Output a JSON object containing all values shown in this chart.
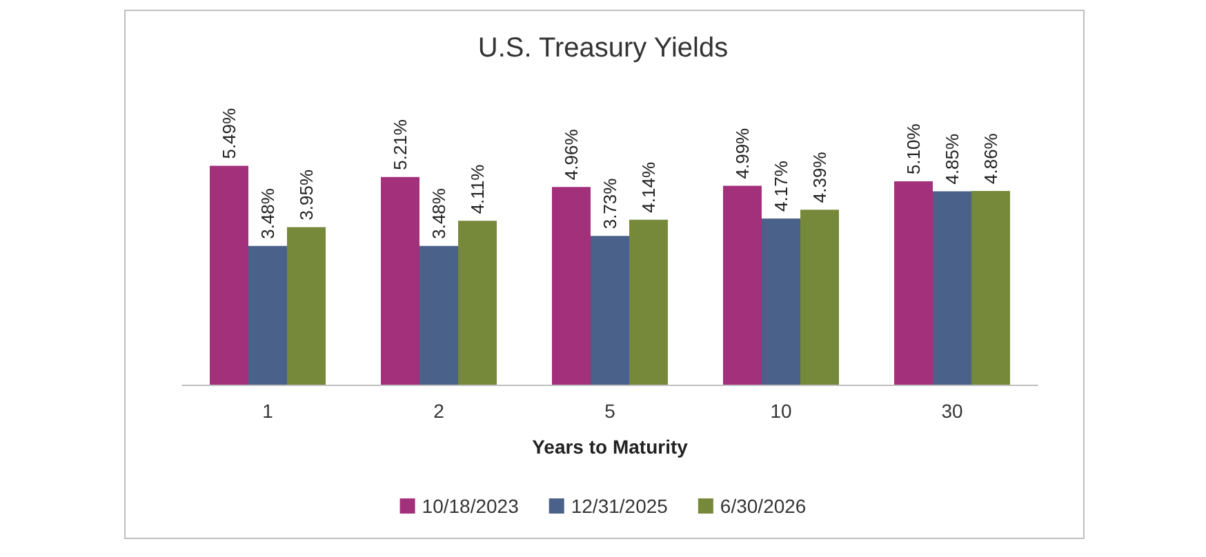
{
  "chart_data": {
    "type": "bar",
    "title": "U.S. Treasury Yields",
    "xlabel": "Years to Maturity",
    "categories": [
      "1",
      "2",
      "5",
      "10",
      "30"
    ],
    "series": [
      {
        "name": "10/18/2023",
        "color": "#a3307a",
        "values": [
          5.49,
          5.21,
          4.96,
          4.99,
          5.1
        ],
        "value_labels": [
          "5.49%",
          "5.21%",
          "4.96%",
          "4.99%",
          "5.10%"
        ]
      },
      {
        "name": "12/31/2025",
        "color": "#4a6189",
        "values": [
          3.48,
          3.48,
          3.73,
          4.17,
          4.85
        ],
        "value_labels": [
          "3.48%",
          "3.48%",
          "3.73%",
          "4.17%",
          "4.85%"
        ]
      },
      {
        "name": "6/30/2026",
        "color": "#76893a",
        "values": [
          3.95,
          4.11,
          4.14,
          4.39,
          4.86
        ],
        "value_labels": [
          "3.95%",
          "4.11%",
          "4.14%",
          "4.39%",
          "4.86%"
        ]
      }
    ],
    "legend": "bottom",
    "grid": false,
    "tick_labels": "x"
  }
}
